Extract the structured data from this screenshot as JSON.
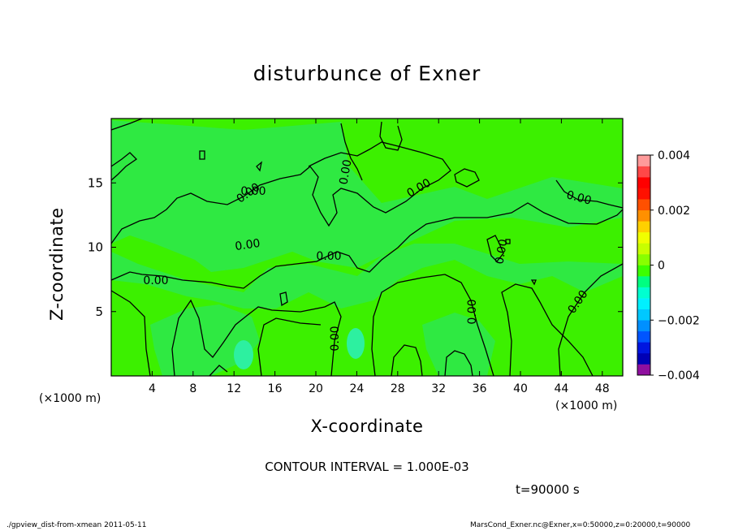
{
  "chart_data": {
    "type": "heatmap",
    "title": "disturbunce of Exner",
    "xlabel": "X-coordinate",
    "ylabel": "Z-coordinate",
    "x_units": "(×1000 m)",
    "xlim": [
      0,
      50
    ],
    "ylim": [
      0,
      20
    ],
    "x_ticks": [
      "4",
      "8",
      "12",
      "16",
      "20",
      "24",
      "28",
      "32",
      "36",
      "40",
      "44",
      "48"
    ],
    "y_ticks": [
      "5",
      "10",
      "15"
    ],
    "colorbar": {
      "range": [
        -0.004,
        0.004
      ],
      "tick_labels": [
        "0.004",
        "0.002",
        "0",
        "−0.002",
        "−0.004"
      ],
      "colors": [
        "#8f0f9f",
        "#0000b5",
        "#0016e0",
        "#0055ff",
        "#0090ff",
        "#00c8ff",
        "#00f0ff",
        "#00ffd0",
        "#00ff80",
        "#3cff00",
        "#88ff00",
        "#c8ff00",
        "#f0ff00",
        "#ffd000",
        "#ff9000",
        "#ff5000",
        "#ff1000",
        "#ff0000",
        "#ff4848",
        "#ff9a9a"
      ]
    },
    "field_value": 0.0,
    "contour_labels": [
      "0.00",
      "0.00",
      "0.00",
      "0.00",
      "0.00",
      "0.00",
      "0.00",
      "0.00",
      "0.00",
      "0.00",
      "0.00",
      "0.00"
    ],
    "contour_interval_text": "CONTOUR INTERVAL = 1.000E-03",
    "time_text": "t=90000 s"
  },
  "footer": {
    "left": "./gpview_dist-from-xmean  2011-05-11",
    "right": "MarsCond_Exner.nc@Exner,x=0:50000,z=0:20000,t=90000"
  }
}
